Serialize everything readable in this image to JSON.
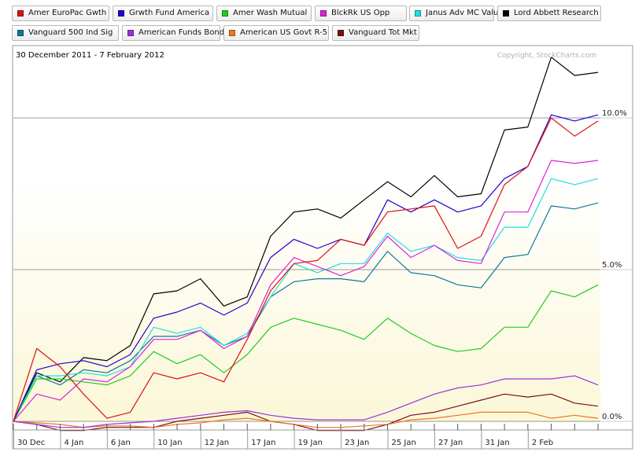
{
  "chart_data": {
    "type": "line",
    "date_range": "30 December 2011 - 7 February 2012",
    "copyright": "Copyright, StockCharts.com",
    "ylim": [
      -0.3,
      12.0
    ],
    "y_ticks": [
      {
        "value": 0,
        "label": "0.0%"
      },
      {
        "value": 5,
        "label": "5.0%"
      },
      {
        "value": 10,
        "label": "10.0%"
      }
    ],
    "x_ticks": [
      {
        "index": 0,
        "label": "30 Dec"
      },
      {
        "index": 2,
        "label": "4 Jan"
      },
      {
        "index": 4,
        "label": "6 Jan"
      },
      {
        "index": 6,
        "label": "10 Jan"
      },
      {
        "index": 8,
        "label": "12 Jan"
      },
      {
        "index": 10,
        "label": "17 Jan"
      },
      {
        "index": 12,
        "label": "19 Jan"
      },
      {
        "index": 14,
        "label": "23 Jan"
      },
      {
        "index": 16,
        "label": "25 Jan"
      },
      {
        "index": 18,
        "label": "27 Jan"
      },
      {
        "index": 20,
        "label": "31 Jan"
      },
      {
        "index": 22,
        "label": "2 Feb"
      }
    ],
    "x": [
      "30 Dec",
      "3 Jan",
      "4 Jan",
      "5 Jan",
      "6 Jan",
      "9 Jan",
      "10 Jan",
      "11 Jan",
      "12 Jan",
      "13 Jan",
      "17 Jan",
      "18 Jan",
      "19 Jan",
      "20 Jan",
      "23 Jan",
      "24 Jan",
      "25 Jan",
      "26 Jan",
      "27 Jan",
      "30 Jan",
      "31 Jan",
      "1 Feb",
      "2 Feb",
      "3 Feb",
      "6 Feb",
      "7 Feb"
    ],
    "series": [
      {
        "name": "Amer EuroPac Gwth",
        "color": "#dd1111",
        "values": [
          0,
          2.4,
          1.8,
          0.9,
          0.1,
          0.3,
          1.6,
          1.4,
          1.6,
          1.3,
          2.7,
          4.3,
          5.2,
          5.3,
          6.0,
          5.8,
          6.9,
          7.0,
          7.1,
          5.7,
          6.1,
          7.8,
          8.4,
          10.0,
          9.4,
          9.9
        ]
      },
      {
        "name": "Grwth Fund America",
        "color": "#2200cc",
        "values": [
          0,
          1.7,
          1.9,
          2.0,
          1.8,
          2.2,
          3.4,
          3.6,
          3.9,
          3.5,
          3.9,
          5.4,
          6.0,
          5.7,
          6.0,
          5.8,
          7.3,
          6.9,
          7.3,
          6.9,
          7.1,
          8.0,
          8.4,
          10.1,
          9.9,
          10.1
        ]
      },
      {
        "name": "Amer Wash Mutual",
        "color": "#22cc22",
        "values": [
          0,
          1.4,
          1.4,
          1.3,
          1.2,
          1.5,
          2.3,
          1.9,
          2.2,
          1.6,
          2.2,
          3.1,
          3.4,
          3.2,
          3.0,
          2.7,
          3.4,
          2.9,
          2.5,
          2.3,
          2.4,
          3.1,
          3.1,
          4.3,
          4.1,
          4.5
        ]
      },
      {
        "name": "BlckRk US Opp",
        "color": "#dd22dd",
        "values": [
          0,
          0.9,
          0.7,
          1.4,
          1.3,
          1.8,
          2.7,
          2.7,
          3.0,
          2.4,
          2.8,
          4.5,
          5.4,
          5.1,
          4.8,
          5.1,
          6.1,
          5.4,
          5.8,
          5.3,
          5.2,
          6.9,
          6.9,
          8.6,
          8.5,
          8.6
        ]
      },
      {
        "name": "Janus Adv MC Value",
        "color": "#22dddd",
        "values": [
          0,
          1.5,
          1.5,
          1.6,
          1.5,
          1.8,
          3.1,
          2.9,
          3.1,
          2.5,
          2.9,
          4.1,
          5.2,
          4.9,
          5.2,
          5.2,
          6.2,
          5.6,
          5.8,
          5.4,
          5.3,
          6.4,
          6.4,
          8.0,
          7.8,
          8.0
        ]
      },
      {
        "name": "Lord Abbett Research",
        "color": "#000000",
        "values": [
          0,
          1.6,
          1.3,
          2.1,
          2.0,
          2.5,
          4.2,
          4.3,
          4.7,
          3.8,
          4.1,
          6.1,
          6.9,
          7.0,
          6.7,
          7.3,
          7.9,
          7.4,
          8.1,
          7.4,
          7.5,
          9.6,
          9.7,
          12.0,
          11.4,
          11.5
        ]
      },
      {
        "name": "Vanguard 500 Ind Sig",
        "color": "#117799",
        "values": [
          0,
          1.5,
          1.2,
          1.7,
          1.6,
          2.0,
          2.8,
          2.8,
          3.0,
          2.5,
          2.8,
          4.1,
          4.6,
          4.7,
          4.7,
          4.6,
          5.6,
          4.9,
          4.8,
          4.5,
          4.4,
          5.4,
          5.5,
          7.1,
          7.0,
          7.2
        ]
      },
      {
        "name": "American Funds Bond",
        "color": "#9933dd",
        "values": [
          0,
          -0.1,
          -0.2,
          -0.2,
          -0.1,
          -0.05,
          0.0,
          0.1,
          0.2,
          0.3,
          0.35,
          0.2,
          0.1,
          0.05,
          0.05,
          0.05,
          0.3,
          0.6,
          0.9,
          1.1,
          1.2,
          1.4,
          1.4,
          1.4,
          1.5,
          1.2
        ]
      },
      {
        "name": "American US Govt R-5",
        "color": "#ee7722",
        "values": [
          0,
          -0.05,
          -0.1,
          -0.2,
          -0.15,
          -0.15,
          -0.2,
          -0.1,
          -0.05,
          0.05,
          0.1,
          0.0,
          -0.1,
          -0.2,
          -0.2,
          -0.15,
          -0.1,
          0.05,
          0.1,
          0.2,
          0.3,
          0.3,
          0.3,
          0.1,
          0.2,
          0.1
        ]
      },
      {
        "name": "Vanguard Tot Mkt",
        "color": "#771111",
        "values": [
          0,
          -0.1,
          -0.3,
          -0.3,
          -0.2,
          -0.2,
          -0.2,
          0.0,
          0.1,
          0.2,
          0.3,
          0.0,
          -0.1,
          -0.3,
          -0.3,
          -0.3,
          -0.1,
          0.2,
          0.3,
          0.5,
          0.7,
          0.9,
          0.8,
          0.9,
          0.6,
          0.5
        ]
      }
    ]
  }
}
